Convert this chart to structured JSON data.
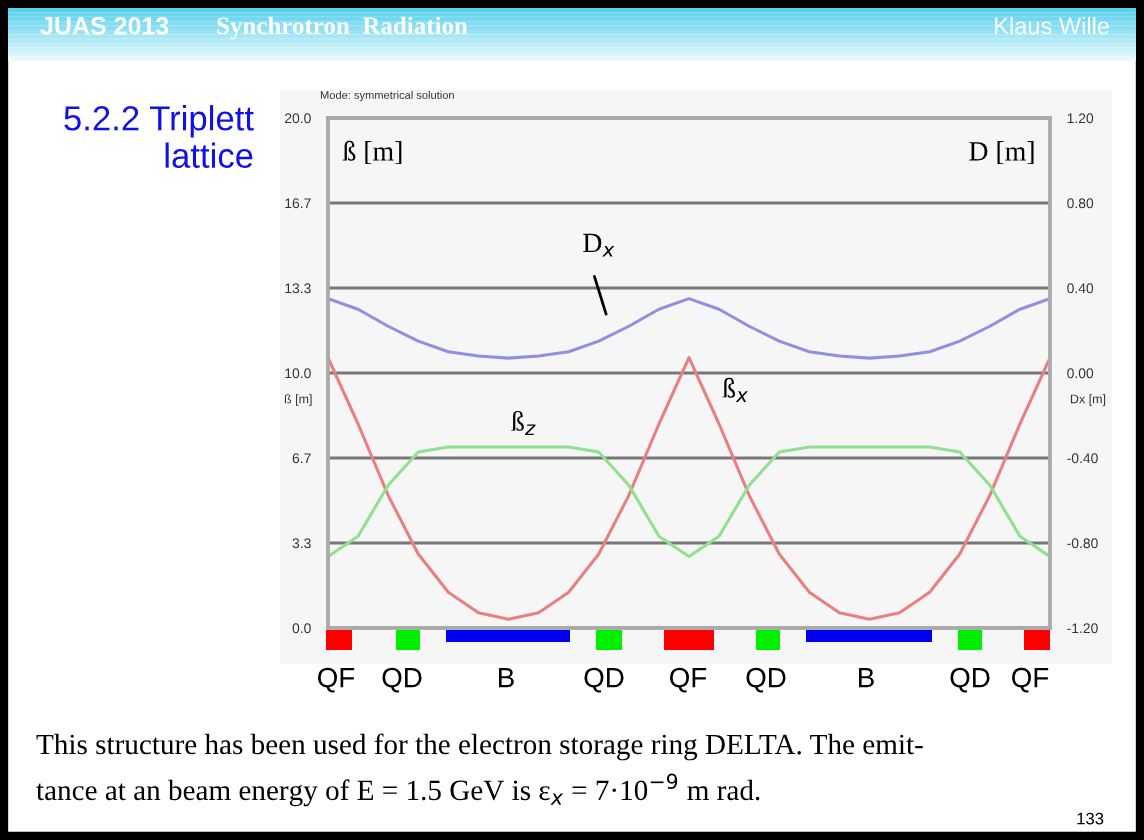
{
  "chart_data": {
    "type": "line",
    "title": "5.2.2 Triplett lattice",
    "ylabel": "ß [m]",
    "y2label": "Dx [m]",
    "categories": [
      null,
      null,
      null,
      null,
      null,
      null,
      null,
      null,
      null,
      null,
      null,
      null,
      null,
      null,
      null,
      null,
      null,
      null,
      null,
      null,
      null,
      null,
      null,
      null,
      null
    ],
    "series": [
      {
        "name": "ß$_{x}$",
        "color": "#e88080",
        "values": [
          10.6,
          8.0,
          5.2,
          2.9,
          1.4,
          0.6,
          0.34,
          0.6,
          1.4,
          2.9,
          5.2,
          8.0,
          10.6,
          8.0,
          5.2,
          2.9,
          1.4,
          0.6,
          0.34,
          0.6,
          1.4,
          2.9,
          5.2,
          8.0,
          10.6
        ]
      },
      {
        "name": "ß$_{z}$",
        "color": "#90e090",
        "values": [
          2.8,
          3.6,
          5.6,
          6.9,
          7.1,
          7.1,
          7.1,
          7.1,
          7.1,
          6.9,
          5.6,
          3.6,
          2.8,
          3.6,
          5.6,
          6.9,
          7.1,
          7.1,
          7.1,
          7.1,
          7.1,
          6.9,
          5.6,
          3.6,
          2.8
        ]
      },
      {
        "name": "D$_{x}$",
        "color": "#9090e0",
        "axis": "y2",
        "values": [
          0.35,
          0.3,
          0.22,
          0.15,
          0.1,
          0.08,
          0.07,
          0.08,
          0.1,
          0.15,
          0.22,
          0.3,
          0.35,
          0.3,
          0.22,
          0.15,
          0.1,
          0.08,
          0.07,
          0.08,
          0.1,
          0.15,
          0.22,
          0.3,
          0.35
        ]
      }
    ],
    "ylim": [
      0,
      20
    ],
    "yticks": [
      {
        "value": 0,
        "label": "0.0"
      },
      {
        "value": 3.333,
        "label": "3.3"
      },
      {
        "value": 6.667,
        "label": "6.7"
      },
      {
        "value": 10,
        "label": "10.0"
      },
      {
        "value": 13.333,
        "label": "13.3"
      },
      {
        "value": 16.667,
        "label": "16.7"
      },
      {
        "value": 20,
        "label": "20.0"
      }
    ],
    "y2lim": [
      -1.2,
      1.2
    ],
    "y2ticks": [
      {
        "value": -1.2,
        "label": "-1.20"
      },
      {
        "value": -0.8,
        "label": "-0.80"
      },
      {
        "value": -0.4,
        "label": "-0.40"
      },
      {
        "value": 0,
        "label": "0.00"
      },
      {
        "value": 0.4,
        "label": "0.40"
      },
      {
        "value": 0.8,
        "label": "0.80"
      },
      {
        "value": 1.2,
        "label": "1.20"
      }
    ],
    "grid": "y",
    "tick_labels": "y",
    "legend": false,
    "annotations": [
      "JUAS 2013",
      "Synchrotron  Radiation",
      "Klaus Wille",
      "Mode: symmetrical solution",
      "ß [m]",
      "D [m]",
      "QF",
      "QD",
      "B",
      "QD",
      "QF",
      "QD",
      "B",
      "QD",
      "QF",
      "This structure has been used for the electron storage ring DELTA. The emit-\ntance at an beam energy of E = 1.5 GeV is ε$_{x}$ = 7·10$^{−9}$ m rad.",
      "133"
    ]
  }
}
